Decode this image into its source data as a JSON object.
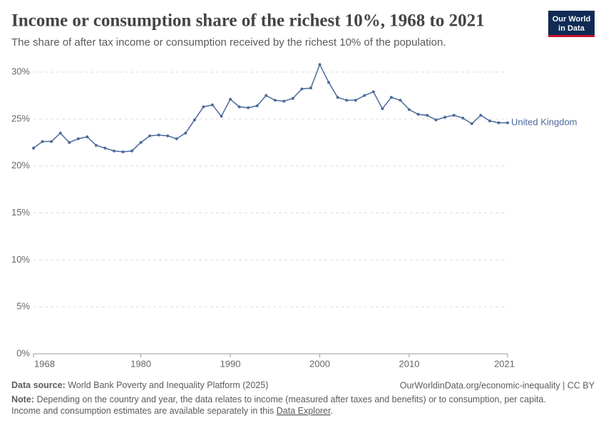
{
  "chart_data": {
    "type": "line",
    "title": "Income or consumption share of the richest 10%, 1968 to 2021",
    "subtitle": "The share of after tax income or consumption received by the richest 10% of the population.",
    "x": [
      1968,
      1969,
      1970,
      1971,
      1972,
      1973,
      1974,
      1975,
      1976,
      1977,
      1978,
      1979,
      1980,
      1981,
      1982,
      1983,
      1984,
      1985,
      1986,
      1987,
      1988,
      1989,
      1990,
      1991,
      1992,
      1993,
      1994,
      1995,
      1996,
      1997,
      1998,
      1999,
      2000,
      2001,
      2002,
      2003,
      2004,
      2005,
      2006,
      2007,
      2008,
      2009,
      2010,
      2011,
      2012,
      2013,
      2014,
      2015,
      2016,
      2017,
      2018,
      2019,
      2020,
      2021
    ],
    "series": [
      {
        "name": "United Kingdom",
        "color": "#4c6a9c",
        "values": [
          21.9,
          22.6,
          22.6,
          23.5,
          22.5,
          22.9,
          23.1,
          22.2,
          21.9,
          21.6,
          21.5,
          21.6,
          22.5,
          23.2,
          23.3,
          23.2,
          22.9,
          23.5,
          24.9,
          26.3,
          26.5,
          25.3,
          27.1,
          26.3,
          26.2,
          26.4,
          27.5,
          27.0,
          26.9,
          27.2,
          28.2,
          28.3,
          30.8,
          28.9,
          27.3,
          27.0,
          27.0,
          27.5,
          27.9,
          26.1,
          27.3,
          27.0,
          26.0,
          25.5,
          25.4,
          24.9,
          25.2,
          25.4,
          25.1,
          24.5,
          25.4,
          24.8,
          24.6,
          24.6
        ]
      }
    ],
    "xlim": [
      1968,
      2021
    ],
    "ylim": [
      0,
      30
    ],
    "xticks": [
      1968,
      1980,
      1990,
      2000,
      2010,
      2021
    ],
    "yticks": [
      {
        "value": 0,
        "label": "0%"
      },
      {
        "value": 5,
        "label": "5%"
      },
      {
        "value": 10,
        "label": "10%"
      },
      {
        "value": 15,
        "label": "15%"
      },
      {
        "value": 20,
        "label": "20%"
      },
      {
        "value": 25,
        "label": "25%"
      },
      {
        "value": 30,
        "label": "30%"
      }
    ],
    "grid": true
  },
  "logo": {
    "line1": "Our World",
    "line2": "in Data"
  },
  "footer": {
    "source_label": "Data source:",
    "source": "World Bank Poverty and Inequality Platform (2025)",
    "url": "OurWorldinData.org/economic-inequality | CC BY",
    "note_label": "Note:",
    "note": "Depending on the country and year, the data relates to income (measured after taxes and benefits) or to consumption, per capita.",
    "note2": "Income and consumption estimates are available separately in this",
    "note_link": "Data Explorer",
    "note_end": "."
  }
}
